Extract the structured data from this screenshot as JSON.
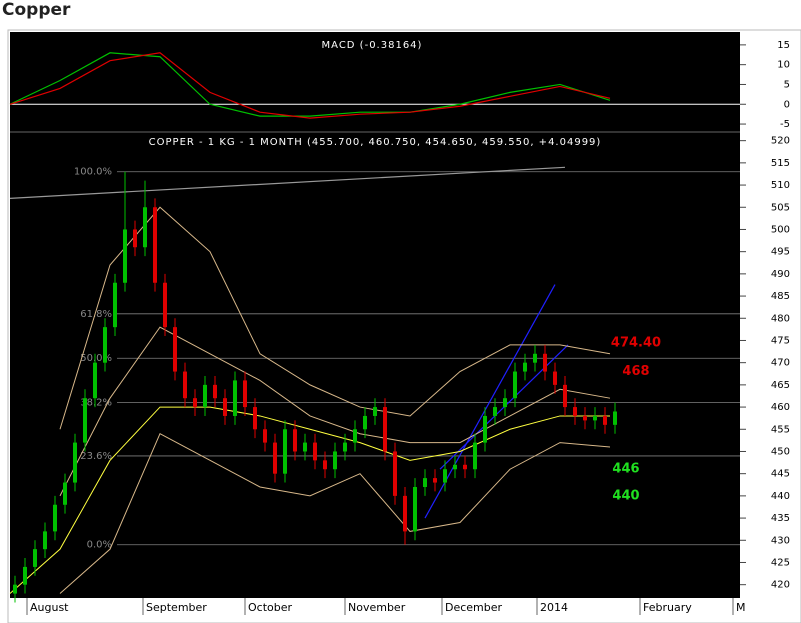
{
  "page_title": "Copper",
  "chart_data": [
    {
      "type": "line",
      "title": "MACD (-0.38164)",
      "x": [
        0,
        10,
        20,
        30,
        40,
        50,
        60,
        70,
        80,
        90,
        100,
        110,
        120
      ],
      "xlim": [
        0,
        146
      ],
      "ylim": [
        -6.5,
        18.25
      ],
      "yticks": [
        -5,
        0,
        5,
        10,
        15
      ],
      "zero_line_color": "#ffffff",
      "series": [
        {
          "color": "#00c000",
          "values": [
            0,
            6,
            13,
            12,
            0,
            -3,
            -3,
            -2,
            -2,
            0,
            3,
            5,
            1
          ]
        },
        {
          "color": "#e00000",
          "values": [
            0,
            4,
            11,
            13,
            3,
            -2,
            -3.5,
            -2.5,
            -2,
            -0.5,
            2,
            4.5,
            1.5
          ]
        }
      ]
    },
    {
      "type": "candlestick",
      "title": "COPPER - 1 KG - 1 MONTH (455.700, 460.750, 454.650, 459.550, +4.04999)",
      "xlim": [
        0,
        146
      ],
      "ylim": [
        417,
        521.5
      ],
      "yticks": [
        420,
        425,
        430,
        435,
        440,
        445,
        450,
        455,
        460,
        465,
        470,
        475,
        480,
        485,
        490,
        495,
        500,
        505,
        510,
        515,
        520
      ],
      "xticks": [
        {
          "value": 3.4,
          "label": "August"
        },
        {
          "value": 26.6,
          "label": "September"
        },
        {
          "value": 47,
          "label": "October"
        },
        {
          "value": 67,
          "label": "November"
        },
        {
          "value": 86.4,
          "label": "December"
        },
        {
          "value": 105.4,
          "label": "2014"
        },
        {
          "value": 126,
          "label": "February"
        },
        {
          "value": 144.6,
          "label": "M"
        }
      ],
      "up_color": "#00c000",
      "down_color": "#e00000",
      "x": [
        1,
        3,
        5,
        7,
        9,
        11,
        13,
        15,
        17,
        19,
        21,
        23,
        25,
        27,
        29,
        31,
        33,
        35,
        37,
        39,
        41,
        43,
        45,
        47,
        49,
        51,
        53,
        55,
        57,
        59,
        61,
        63,
        65,
        67,
        69,
        71,
        73,
        75,
        77,
        79,
        81,
        83,
        85,
        87,
        89,
        91,
        93,
        95,
        97,
        99,
        101,
        103,
        105,
        107,
        109,
        111,
        113,
        115,
        117,
        119,
        121
      ],
      "open": [
        418,
        420,
        424,
        428,
        432,
        438,
        443,
        452,
        462,
        470,
        478,
        488,
        500,
        496,
        505,
        488,
        478,
        468,
        462,
        460,
        465,
        462,
        458,
        466,
        460,
        455,
        452,
        445,
        455,
        450,
        452,
        448,
        446,
        450,
        452,
        455,
        458,
        460,
        450,
        440,
        432,
        442,
        444,
        443,
        446,
        447,
        446,
        452,
        458,
        460,
        462,
        468,
        470,
        472,
        468,
        465,
        460,
        458,
        457,
        458,
        456
      ],
      "high": [
        422,
        426,
        430,
        434,
        440,
        445,
        454,
        464,
        472,
        480,
        490,
        513,
        502,
        511,
        507,
        490,
        480,
        470,
        464,
        467,
        467,
        464,
        468,
        468,
        462,
        457,
        454,
        457,
        457,
        454,
        454,
        450,
        452,
        454,
        457,
        460,
        462,
        462,
        452,
        442,
        444,
        446,
        446,
        448,
        449,
        449,
        454,
        460,
        462,
        464,
        470,
        472,
        474,
        474,
        470,
        467,
        462,
        460,
        460,
        460,
        461
      ],
      "low": [
        416,
        418,
        422,
        426,
        430,
        436,
        441,
        450,
        460,
        468,
        476,
        486,
        494,
        494,
        486,
        476,
        466,
        460,
        458,
        458,
        460,
        456,
        456,
        458,
        453,
        450,
        443,
        443,
        448,
        448,
        446,
        444,
        444,
        448,
        450,
        453,
        456,
        448,
        438,
        429,
        430,
        440,
        441,
        441,
        444,
        444,
        444,
        450,
        456,
        458,
        460,
        466,
        468,
        466,
        463,
        458,
        456,
        455,
        455,
        454,
        454
      ],
      "close": [
        420,
        424,
        428,
        432,
        438,
        443,
        452,
        462,
        470,
        478,
        488,
        500,
        496,
        505,
        488,
        478,
        468,
        462,
        460,
        465,
        462,
        458,
        466,
        460,
        455,
        452,
        445,
        455,
        450,
        452,
        448,
        446,
        450,
        452,
        455,
        458,
        460,
        450,
        440,
        432,
        442,
        444,
        443,
        446,
        447,
        446,
        452,
        458,
        460,
        462,
        468,
        470,
        472,
        468,
        465,
        460,
        458,
        457,
        458,
        456,
        459
      ],
      "overlays": {
        "x": [
          0,
          10,
          20,
          30,
          40,
          50,
          60,
          70,
          80,
          90,
          100,
          110,
          120
        ],
        "series": [
          {
            "color": "#d8b88a",
            "values": [
              null,
              455,
              492,
              505,
              495,
              472,
              465,
              460,
              458,
              468,
              474,
              474,
              472
            ]
          },
          {
            "color": "#d8b88a",
            "values": [
              null,
              440,
              462,
              478,
              472,
              466,
              458,
              454,
              452,
              452,
              458,
              464,
              462
            ]
          },
          {
            "color": "#d8b88a",
            "values": [
              null,
              418,
              428,
              454,
              448,
              442,
              440,
              445,
              432,
              434,
              446,
              452,
              451
            ]
          },
          {
            "color": "#ffff40",
            "values": [
              418,
              428,
              448,
              460,
              460,
              458,
              455,
              452,
              448,
              450,
              455,
              458,
              458
            ]
          }
        ]
      },
      "fib_levels": [
        {
          "value": 513,
          "label": "100.0%"
        },
        {
          "value": 481,
          "label": "61.8%"
        },
        {
          "value": 471,
          "label": "50.0%"
        },
        {
          "value": 461,
          "label": "38.2%"
        },
        {
          "value": 449,
          "label": "23.6%"
        },
        {
          "value": 429,
          "label": "0.0%"
        }
      ],
      "trend_lines": [
        {
          "color": "#999999",
          "x": [
            0,
            111
          ],
          "values": [
            507,
            514
          ]
        },
        {
          "color": "#2020ff",
          "x": [
            83,
            109
          ],
          "values": [
            435,
            487.6
          ]
        },
        {
          "color": "#2020ff",
          "x": [
            86,
            111.6
          ],
          "values": [
            446,
            474
          ]
        }
      ],
      "annotations": [
        {
          "value": 474.4,
          "label": "474.40",
          "color": "#e00000"
        },
        {
          "value": 468,
          "label": "468",
          "color": "#e00000"
        },
        {
          "value": 446,
          "label": "446",
          "color": "#20e020"
        },
        {
          "value": 440,
          "label": "440",
          "color": "#20e020"
        }
      ]
    }
  ]
}
